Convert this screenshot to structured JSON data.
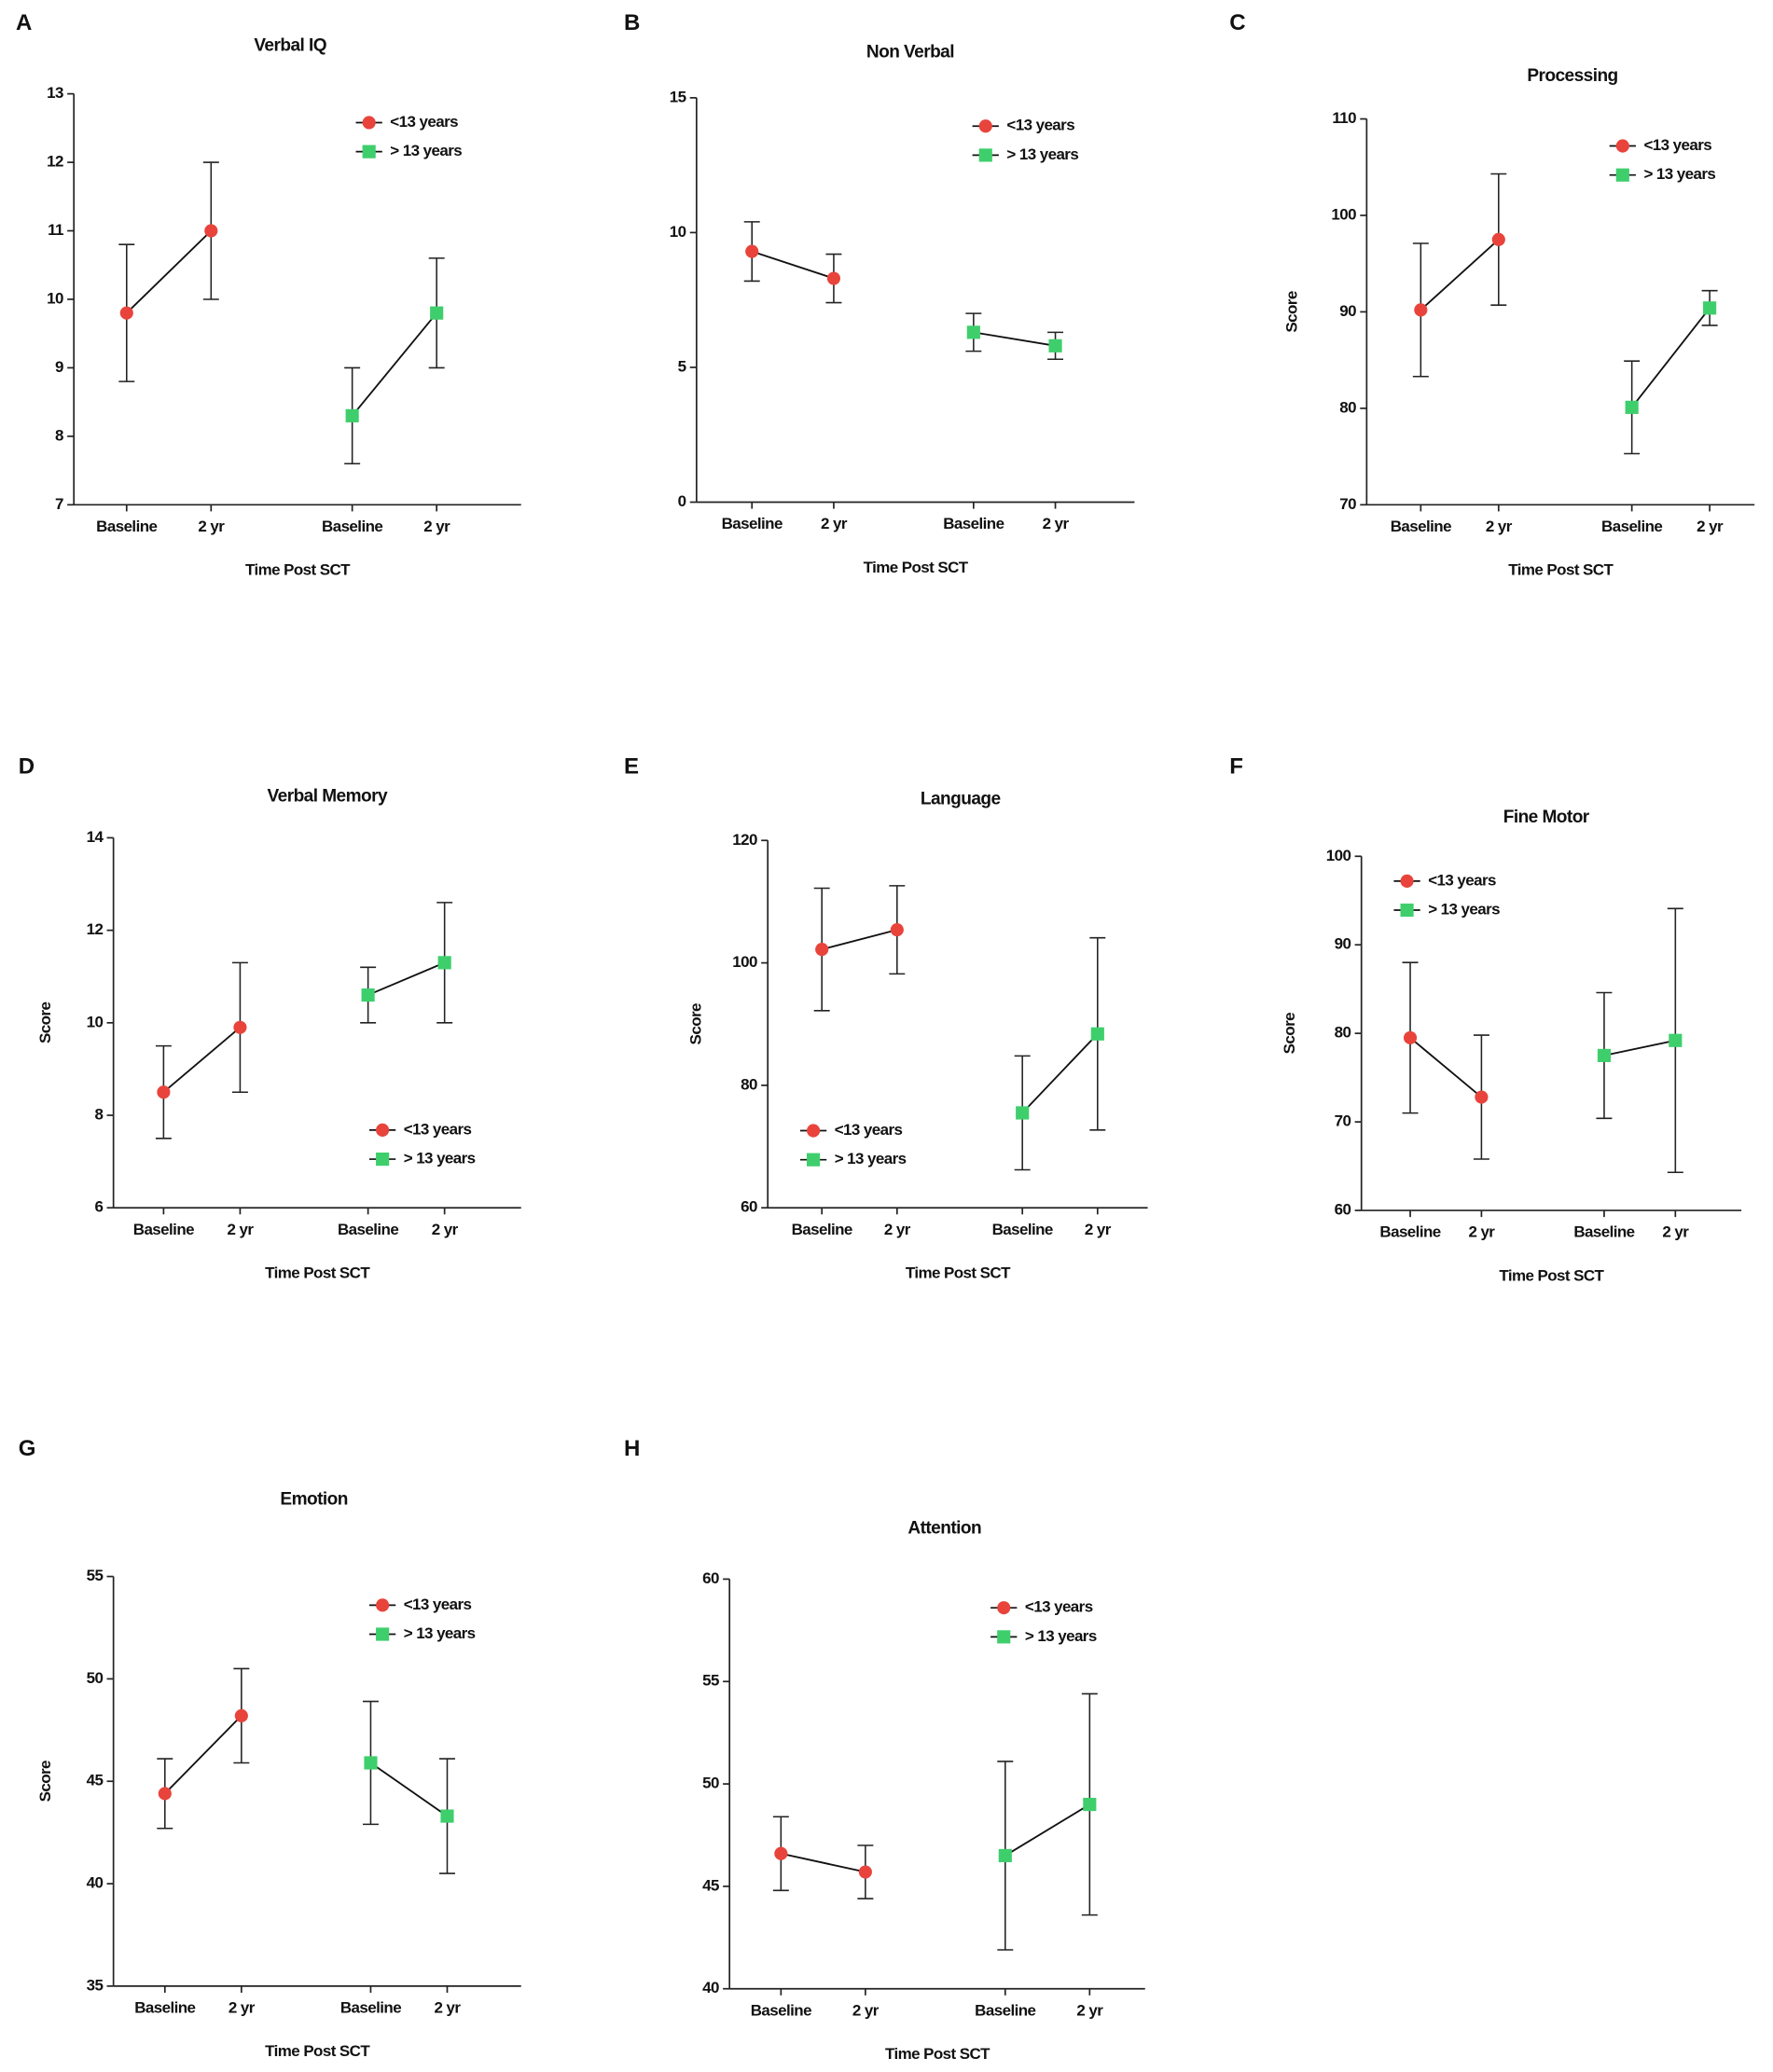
{
  "chart_data": [
    {
      "type": "line",
      "panel": "A",
      "title": "Verbal IQ",
      "xlabel": "Time Post SCT",
      "categories": [
        "Baseline",
        "2 yr",
        "Baseline",
        "2 yr"
      ],
      "ylim": [
        7,
        13
      ],
      "yticks": [
        7,
        8,
        9,
        10,
        11,
        12,
        13
      ],
      "legend": "upper right",
      "series": [
        {
          "name": "<13 years",
          "color": "#e8443c",
          "marker": "circle",
          "values": [
            9.8,
            11.0,
            null,
            null
          ],
          "errors": [
            1.0,
            1.0,
            null,
            null
          ]
        },
        {
          "name": "> 13 years",
          "color": "#3ecf6c",
          "marker": "square",
          "values": [
            null,
            null,
            8.3,
            9.8
          ],
          "errors": [
            null,
            null,
            0.7,
            0.8
          ]
        }
      ]
    },
    {
      "type": "line",
      "panel": "B",
      "title": "Non Verbal",
      "xlabel": "Time Post SCT",
      "categories": [
        "Baseline",
        "2 yr",
        "Baseline",
        "2 yr"
      ],
      "ylim": [
        0,
        15
      ],
      "yticks": [
        0,
        5,
        10,
        15
      ],
      "legend": "upper right",
      "series": [
        {
          "name": "<13 years",
          "color": "#e8443c",
          "marker": "circle",
          "values": [
            9.3,
            8.3,
            null,
            null
          ],
          "errors": [
            1.1,
            0.9,
            null,
            null
          ]
        },
        {
          "name": "> 13 years",
          "color": "#3ecf6c",
          "marker": "square",
          "values": [
            null,
            null,
            6.3,
            5.8
          ],
          "errors": [
            null,
            null,
            0.7,
            0.5
          ]
        }
      ]
    },
    {
      "type": "line",
      "panel": "C",
      "title": "Processing",
      "xlabel": "Time Post SCT",
      "ylabel": "Score",
      "categories": [
        "Baseline",
        "2 yr",
        "Baseline",
        "2 yr"
      ],
      "ylim": [
        70,
        110
      ],
      "yticks": [
        70,
        80,
        90,
        100,
        110
      ],
      "legend": "upper right",
      "series": [
        {
          "name": "<13 years",
          "color": "#e8443c",
          "marker": "circle",
          "values": [
            90.2,
            97.5,
            null,
            null
          ],
          "errors": [
            6.9,
            6.8,
            null,
            null
          ]
        },
        {
          "name": "> 13 years",
          "color": "#3ecf6c",
          "marker": "square",
          "values": [
            null,
            null,
            80.1,
            90.4
          ],
          "errors": [
            null,
            null,
            4.8,
            1.8
          ]
        }
      ]
    },
    {
      "type": "line",
      "panel": "D",
      "title": "Verbal Memory",
      "xlabel": "Time Post SCT",
      "ylabel": "Score",
      "categories": [
        "Baseline",
        "2 yr",
        "Baseline",
        "2 yr"
      ],
      "ylim": [
        6,
        14
      ],
      "yticks": [
        6,
        8,
        10,
        12,
        14
      ],
      "legend": "lower right",
      "series": [
        {
          "name": "<13 years",
          "color": "#e8443c",
          "marker": "circle",
          "values": [
            8.5,
            9.9,
            null,
            null
          ],
          "errors": [
            1.0,
            1.4,
            null,
            null
          ]
        },
        {
          "name": "> 13 years",
          "color": "#3ecf6c",
          "marker": "square",
          "values": [
            null,
            null,
            10.6,
            11.3
          ],
          "errors": [
            null,
            null,
            0.6,
            1.3
          ]
        }
      ]
    },
    {
      "type": "line",
      "panel": "E",
      "title": "Language",
      "xlabel": "Time Post SCT",
      "ylabel": "Score",
      "categories": [
        "Baseline",
        "2 yr",
        "Baseline",
        "2 yr"
      ],
      "ylim": [
        60,
        120
      ],
      "yticks": [
        60,
        80,
        100,
        120
      ],
      "legend": "lower left",
      "series": [
        {
          "name": "<13 years",
          "color": "#e8443c",
          "marker": "circle",
          "values": [
            102.2,
            105.4,
            null,
            null
          ],
          "errors": [
            10.0,
            7.2,
            null,
            null
          ]
        },
        {
          "name": "> 13 years",
          "color": "#3ecf6c",
          "marker": "square",
          "values": [
            null,
            null,
            75.5,
            88.4
          ],
          "errors": [
            null,
            null,
            9.3,
            15.7
          ]
        }
      ]
    },
    {
      "type": "line",
      "panel": "F",
      "title": "Fine Motor",
      "xlabel": "Time Post SCT",
      "ylabel": "Score",
      "categories": [
        "Baseline",
        "2 yr",
        "Baseline",
        "2 yr"
      ],
      "ylim": [
        60,
        100
      ],
      "yticks": [
        60,
        70,
        80,
        90,
        100
      ],
      "legend": "upper left",
      "series": [
        {
          "name": "<13 years",
          "color": "#e8443c",
          "marker": "circle",
          "values": [
            79.5,
            72.8,
            null,
            null
          ],
          "errors": [
            8.5,
            7.0,
            null,
            null
          ]
        },
        {
          "name": "> 13 years",
          "color": "#3ecf6c",
          "marker": "square",
          "values": [
            null,
            null,
            77.5,
            79.2
          ],
          "errors": [
            null,
            null,
            7.1,
            14.9
          ]
        }
      ]
    },
    {
      "type": "line",
      "panel": "G",
      "title": "Emotion",
      "xlabel": "Time Post SCT",
      "ylabel": "Score",
      "categories": [
        "Baseline",
        "2 yr",
        "Baseline",
        "2 yr"
      ],
      "ylim": [
        35,
        55
      ],
      "yticks": [
        35,
        40,
        45,
        50,
        55
      ],
      "legend": "upper right",
      "series": [
        {
          "name": "<13 years",
          "color": "#e8443c",
          "marker": "circle",
          "values": [
            44.4,
            48.2,
            null,
            null
          ],
          "errors": [
            1.7,
            2.3,
            null,
            null
          ]
        },
        {
          "name": "> 13 years",
          "color": "#3ecf6c",
          "marker": "square",
          "values": [
            null,
            null,
            45.9,
            43.3
          ],
          "errors": [
            null,
            null,
            3.0,
            2.8
          ]
        }
      ]
    },
    {
      "type": "line",
      "panel": "H",
      "title": "Attention",
      "xlabel": "Time Post SCT",
      "categories": [
        "Baseline",
        "2 yr",
        "Baseline",
        "2 yr"
      ],
      "ylim": [
        40,
        60
      ],
      "yticks": [
        40,
        45,
        50,
        55,
        60
      ],
      "legend": "upper right",
      "series": [
        {
          "name": "<13 years",
          "color": "#e8443c",
          "marker": "circle",
          "values": [
            46.6,
            45.7,
            null,
            null
          ],
          "errors": [
            1.8,
            1.3,
            null,
            null
          ]
        },
        {
          "name": "> 13 years",
          "color": "#3ecf6c",
          "marker": "square",
          "values": [
            null,
            null,
            46.5,
            49.0
          ],
          "errors": [
            null,
            null,
            4.6,
            5.4
          ]
        }
      ]
    }
  ]
}
